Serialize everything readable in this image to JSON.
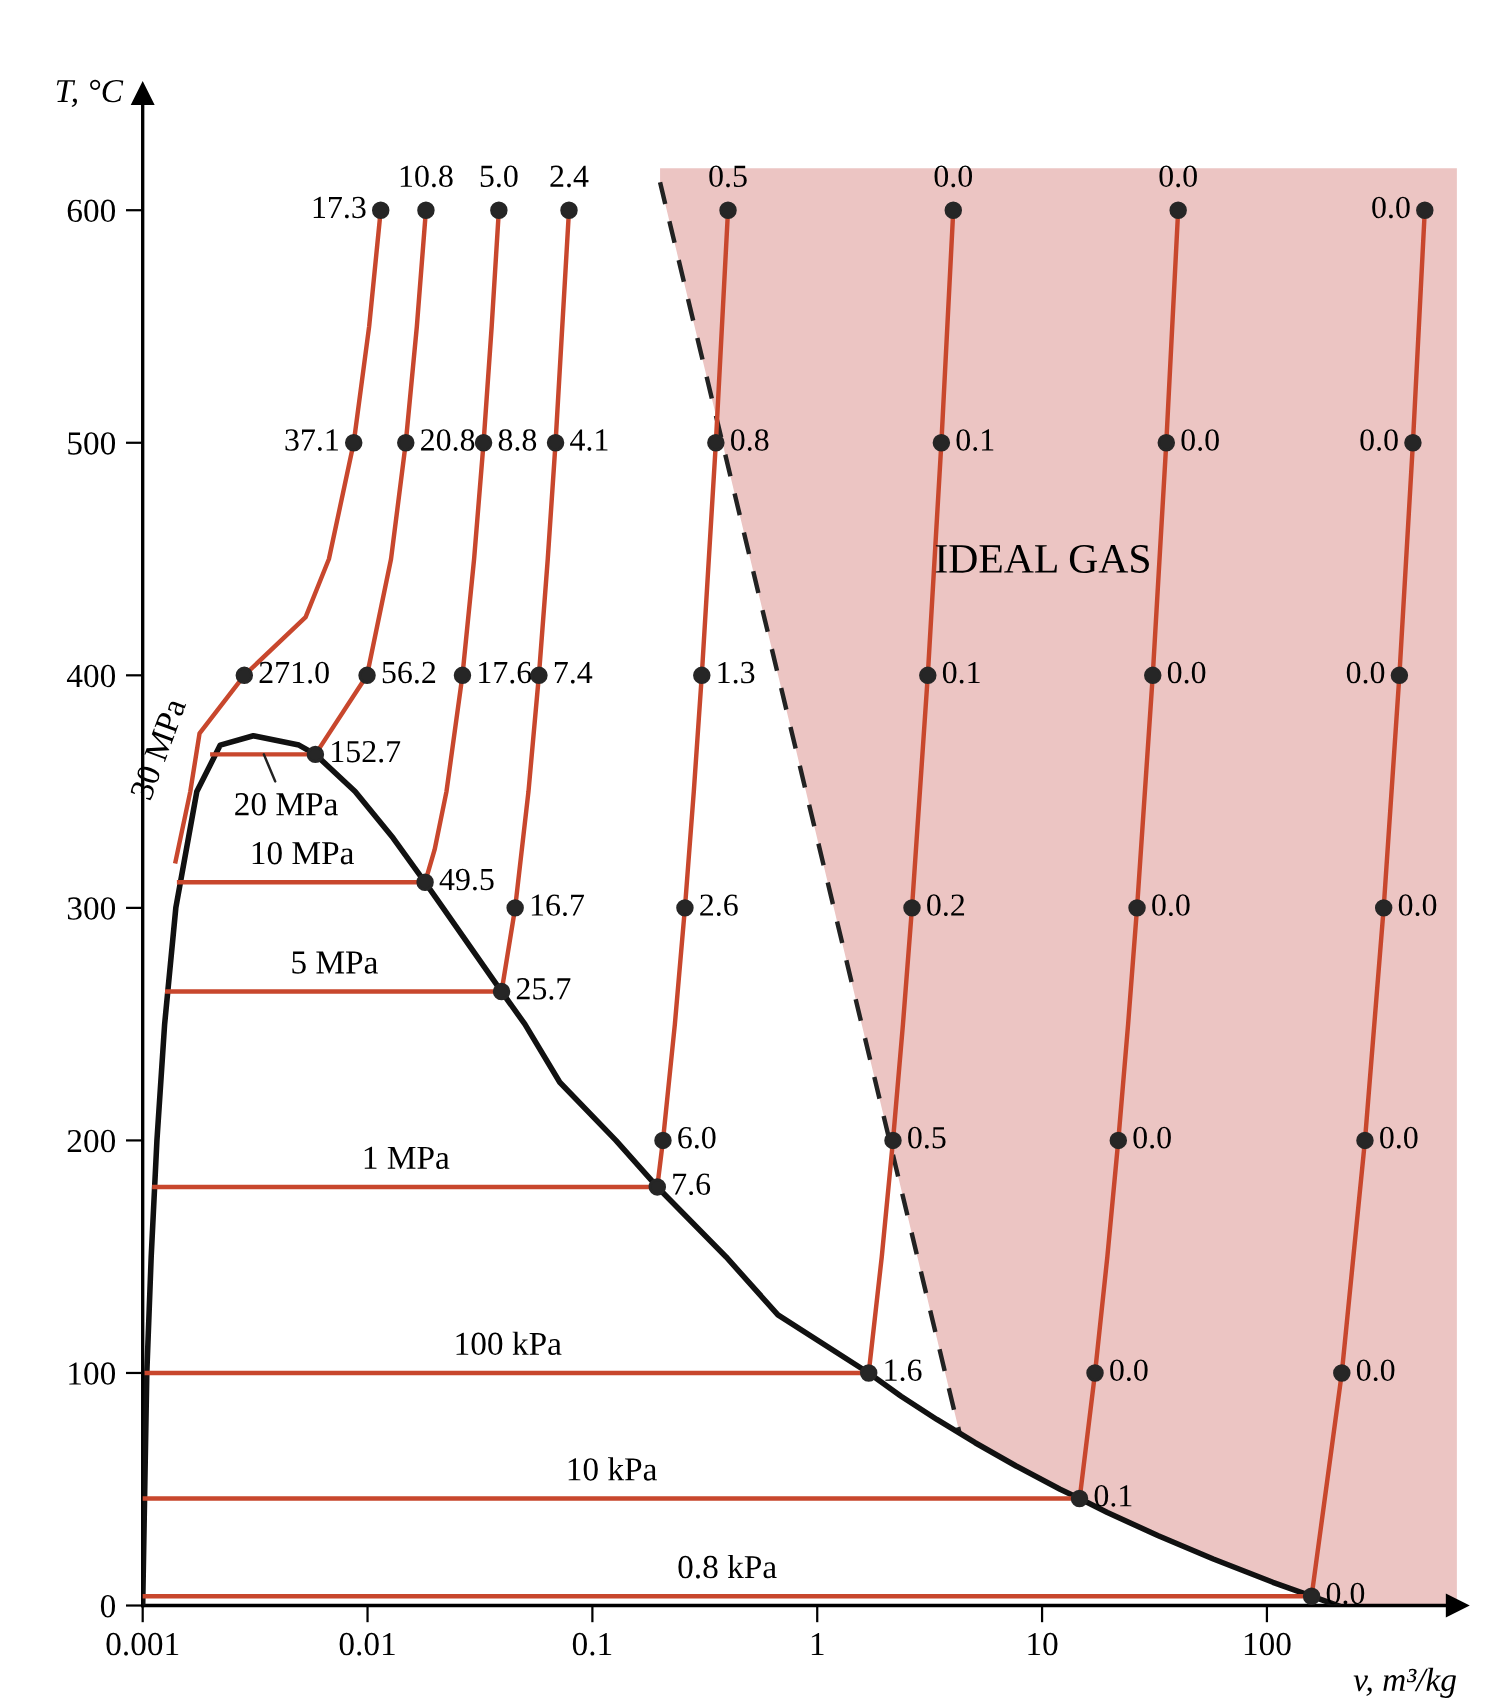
{
  "chart_data": {
    "type": "line",
    "xlabel": "v, m³/kg",
    "ylabel": "T, °C",
    "log": "x",
    "xlim": [
      0.001,
      700
    ],
    "ylim": [
      0,
      650
    ],
    "xticks": [
      {
        "value": 0.001,
        "label": "0.001"
      },
      {
        "value": 0.01,
        "label": "0.01"
      },
      {
        "value": 0.1,
        "label": "0.1"
      },
      1,
      10,
      100
    ],
    "yticks": [
      0,
      100,
      200,
      300,
      400,
      500,
      600
    ],
    "grid": false,
    "marker": "none",
    "line_style": "solid",
    "series": [
      {
        "type": "line",
        "line_style": "dashed",
        "color": "#222222",
        "x": [
          0.2,
          4.3
        ],
        "values": [
          612,
          74
        ]
      },
      {
        "type": "line",
        "color": "#111111",
        "x": [
          0.001,
          0.001043,
          0.001091,
          0.001157,
          0.001252,
          0.001404,
          0.001741,
          0.002213,
          0.003106,
          0.004953,
          0.005862,
          0.008806,
          0.013,
          0.018028,
          0.021659,
          0.039448,
          0.05008,
          0.07159,
          0.12721,
          0.19436,
          0.39248,
          0.6685,
          1.6941,
          2.3593,
          3.4053,
          5.0396,
          7.667,
          12.026,
          14.67,
          19.515,
          32.879,
          57.757,
          106.32,
          158,
          206
        ],
        "values": [
          0,
          100,
          150,
          200,
          250,
          300,
          350,
          370,
          374,
          370,
          366,
          350,
          330,
          311,
          300,
          264,
          250,
          225,
          200,
          180,
          150,
          125,
          100,
          90,
          80,
          70,
          60,
          50,
          46,
          40,
          30,
          20,
          10,
          4,
          0
        ]
      },
      {
        "name": "30 MPa",
        "color": "#c8472d",
        "x": [
          0.0014,
          0.001628,
          0.00179,
          0.002831,
          0.005304,
          0.006734,
          0.008681,
          0.010166,
          0.011446
        ],
        "values": [
          320,
          350,
          375,
          400,
          425,
          450,
          500,
          550,
          600
        ]
      },
      {
        "name": "20 MPa",
        "color": "#c8472d",
        "x": [
          0.00204,
          0.005862,
          0.00995,
          0.012721,
          0.014793,
          0.016571,
          0.018185
        ],
        "values": [
          366,
          366,
          400,
          450,
          500,
          550,
          600
        ]
      },
      {
        "name": "10 MPa",
        "color": "#c8472d",
        "x": [
          0.001452,
          0.018028,
          0.019877,
          0.02244,
          0.026436,
          0.029782,
          0.032811,
          0.035655,
          0.038378
        ],
        "values": [
          311,
          311,
          325,
          350,
          400,
          450,
          500,
          550,
          600
        ]
      },
      {
        "name": "5 MPa",
        "color": "#c8472d",
        "x": [
          0.001286,
          0.039448,
          0.045347,
          0.051971,
          0.05784,
          0.06332,
          0.068583,
          0.078704
        ],
        "values": [
          264,
          264,
          300,
          350,
          400,
          450,
          500,
          600
        ]
      },
      {
        "name": "1 MPa",
        "color": "#c8472d",
        "x": [
          0.001127,
          0.19436,
          0.20602,
          0.23275,
          0.25799,
          0.2825,
          0.30661,
          0.35411,
          0.40111
        ],
        "values": [
          180,
          180,
          200,
          250,
          300,
          350,
          400,
          500,
          600
        ]
      },
      {
        "name": "100 kPa",
        "color": "#c8472d",
        "x": [
          0.001043,
          1.6941,
          1.9367,
          2.1724,
          2.4062,
          2.6389,
          3.1027,
          3.5655,
          4.0279
        ],
        "values": [
          100,
          100,
          150,
          200,
          250,
          300,
          400,
          500,
          600
        ]
      },
      {
        "name": "10 kPa",
        "color": "#c8472d",
        "x": [
          0.00101,
          14.67,
          14.867,
          17.196,
          19.513,
          21.826,
          24.136,
          26.446,
          31.063,
          35.68,
          40.296
        ],
        "values": [
          46,
          46,
          50,
          100,
          150,
          200,
          250,
          300,
          400,
          500,
          600
        ]
      },
      {
        "name": "0.8 kPa",
        "color": "#c8472d",
        "x": [
          0.001,
          158,
          215.3,
          272.9,
          330.6,
          388.3,
          446.0,
          503.7
        ],
        "values": [
          4,
          4,
          100,
          200,
          300,
          400,
          500,
          600
        ]
      },
      {
        "type": "scatter",
        "marker": "circle",
        "color": "#262626",
        "x": [
          0.002831,
          0.008681,
          0.011446,
          0.005862,
          0.00995,
          0.014793,
          0.018185,
          0.018028,
          0.026436,
          0.032811,
          0.038378,
          0.039448,
          0.045347,
          0.05784,
          0.068583,
          0.078704,
          0.19436,
          0.20602,
          0.25799,
          0.30661,
          0.35411,
          0.40111,
          1.6941,
          2.1724,
          2.6389,
          3.1027,
          3.5655,
          4.0279,
          14.67,
          17.196,
          21.826,
          26.446,
          31.063,
          35.68,
          40.296,
          158,
          215.3,
          272.9,
          330.6,
          388.3,
          446.0,
          503.7
        ],
        "values": [
          400,
          500,
          600,
          366,
          400,
          500,
          600,
          311,
          400,
          500,
          600,
          264,
          300,
          400,
          500,
          600,
          180,
          200,
          300,
          400,
          500,
          600,
          100,
          200,
          300,
          400,
          500,
          600,
          46,
          100,
          200,
          300,
          400,
          500,
          600,
          4,
          100,
          200,
          300,
          400,
          500,
          600
        ]
      }
    ],
    "annotations": [
      {
        "text": "271.0",
        "x": 0.002831,
        "y": 400
      },
      {
        "text": "37.1",
        "x": 0.008681,
        "y": 500
      },
      {
        "text": "17.3",
        "x": 0.011446,
        "y": 600
      },
      {
        "text": "152.7",
        "x": 0.005862,
        "y": 366
      },
      {
        "text": "56.2",
        "x": 0.00995,
        "y": 400
      },
      {
        "text": "20.8",
        "x": 0.014793,
        "y": 500
      },
      {
        "text": "10.8",
        "x": 0.018185,
        "y": 600
      },
      {
        "text": "49.5",
        "x": 0.018028,
        "y": 311
      },
      {
        "text": "17.6",
        "x": 0.026436,
        "y": 400
      },
      {
        "text": "8.8",
        "x": 0.032811,
        "y": 500
      },
      {
        "text": "5.0",
        "x": 0.038378,
        "y": 600
      },
      {
        "text": "25.7",
        "x": 0.039448,
        "y": 264
      },
      {
        "text": "16.7",
        "x": 0.045347,
        "y": 300
      },
      {
        "text": "7.4",
        "x": 0.05784,
        "y": 400
      },
      {
        "text": "4.1",
        "x": 0.068583,
        "y": 500
      },
      {
        "text": "2.4",
        "x": 0.078704,
        "y": 600
      },
      {
        "text": "7.6",
        "x": 0.19436,
        "y": 180
      },
      {
        "text": "6.0",
        "x": 0.20602,
        "y": 200
      },
      {
        "text": "2.6",
        "x": 0.25799,
        "y": 300
      },
      {
        "text": "1.3",
        "x": 0.30661,
        "y": 400
      },
      {
        "text": "0.8",
        "x": 0.35411,
        "y": 500
      },
      {
        "text": "0.5",
        "x": 0.40111,
        "y": 600
      },
      {
        "text": "1.6",
        "x": 1.6941,
        "y": 100
      },
      {
        "text": "0.5",
        "x": 2.1724,
        "y": 200
      },
      {
        "text": "0.2",
        "x": 2.6389,
        "y": 300
      },
      {
        "text": "0.1",
        "x": 3.1027,
        "y": 400
      },
      {
        "text": "0.1",
        "x": 3.5655,
        "y": 500
      },
      {
        "text": "0.0",
        "x": 4.0279,
        "y": 600
      },
      {
        "text": "0.1",
        "x": 14.67,
        "y": 46
      },
      {
        "text": "0.0",
        "x": 17.196,
        "y": 100
      },
      {
        "text": "0.0",
        "x": 21.826,
        "y": 200
      },
      {
        "text": "0.0",
        "x": 26.446,
        "y": 300
      },
      {
        "text": "0.0",
        "x": 31.063,
        "y": 400
      },
      {
        "text": "0.0",
        "x": 35.68,
        "y": 500
      },
      {
        "text": "0.0",
        "x": 40.296,
        "y": 600
      },
      {
        "text": "0.0",
        "x": 158,
        "y": 4
      },
      {
        "text": "0.0",
        "x": 215.3,
        "y": 100
      },
      {
        "text": "0.0",
        "x": 272.9,
        "y": 200
      },
      {
        "text": "0.0",
        "x": 330.6,
        "y": 300
      },
      {
        "text": "0.0",
        "x": 388.3,
        "y": 400
      },
      {
        "text": "0.0",
        "x": 446.0,
        "y": 500
      },
      {
        "text": "0.0",
        "x": 503.7,
        "y": 600
      },
      "IDEAL GAS"
    ]
  }
}
